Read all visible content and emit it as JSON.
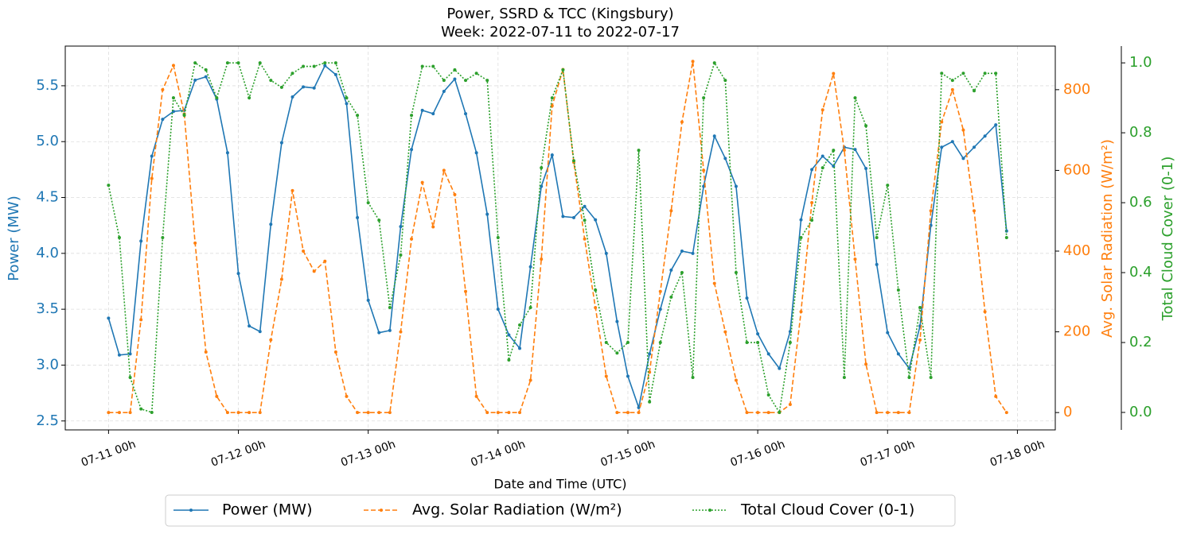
{
  "chart_data": {
    "type": "line",
    "title": "Power, SSRD & TCC (Kingsbury)",
    "subtitle": "Week: 2022-07-11 to 2022-07-17",
    "xlabel": "Date and Time (UTC)",
    "ylabel": "Power (MW)",
    "y2label": "Avg. Solar Radiation (W/m²)",
    "y3label": "Total Cloud Cover (0-1)",
    "grid": true,
    "legend": "below",
    "x": [
      "07-11 00h",
      "07-11 02h",
      "07-11 04h",
      "07-11 06h",
      "07-11 08h",
      "07-11 10h",
      "07-11 12h",
      "07-11 14h",
      "07-11 16h",
      "07-11 18h",
      "07-11 20h",
      "07-11 22h",
      "07-12 00h",
      "07-12 02h",
      "07-12 04h",
      "07-12 06h",
      "07-12 08h",
      "07-12 10h",
      "07-12 12h",
      "07-12 14h",
      "07-12 16h",
      "07-12 18h",
      "07-12 20h",
      "07-12 22h",
      "07-13 00h",
      "07-13 02h",
      "07-13 04h",
      "07-13 06h",
      "07-13 08h",
      "07-13 10h",
      "07-13 12h",
      "07-13 14h",
      "07-13 16h",
      "07-13 18h",
      "07-13 20h",
      "07-13 22h",
      "07-14 00h",
      "07-14 02h",
      "07-14 04h",
      "07-14 06h",
      "07-14 08h",
      "07-14 10h",
      "07-14 12h",
      "07-14 14h",
      "07-14 16h",
      "07-14 18h",
      "07-14 20h",
      "07-14 22h",
      "07-15 00h",
      "07-15 02h",
      "07-15 04h",
      "07-15 06h",
      "07-15 08h",
      "07-15 10h",
      "07-15 12h",
      "07-15 14h",
      "07-15 16h",
      "07-15 18h",
      "07-15 20h",
      "07-15 22h",
      "07-16 00h",
      "07-16 02h",
      "07-16 04h",
      "07-16 06h",
      "07-16 08h",
      "07-16 10h",
      "07-16 12h",
      "07-16 14h",
      "07-16 16h",
      "07-16 18h",
      "07-16 20h",
      "07-16 22h",
      "07-17 00h",
      "07-17 02h",
      "07-17 04h",
      "07-17 06h",
      "07-17 08h",
      "07-17 10h",
      "07-17 12h",
      "07-17 14h",
      "07-17 16h",
      "07-17 18h",
      "07-17 20h",
      "07-17 22h"
    ],
    "xlim": [
      "07-10 16h",
      "07-18 07h"
    ],
    "xticks": [
      "07-11 00h",
      "07-12 00h",
      "07-13 00h",
      "07-14 00h",
      "07-15 00h",
      "07-16 00h",
      "07-17 00h",
      "07-18 00h"
    ],
    "ylim": [
      2.42,
      5.855
    ],
    "yticks": [
      2.5,
      {
        "value": 3,
        "label": "3.0"
      },
      3.5,
      {
        "value": 4,
        "label": "4.0"
      },
      4.5,
      {
        "value": 5,
        "label": "5.0"
      },
      5.5
    ],
    "y2lim": [
      -43,
      908
    ],
    "y2ticks": [
      0,
      200,
      400,
      600,
      800
    ],
    "y3lim": [
      -0.05,
      1.048
    ],
    "y3ticks": [
      {
        "value": 0,
        "label": "0.0"
      },
      0.2,
      0.4,
      0.6,
      0.8,
      {
        "value": 1,
        "label": "1.0"
      }
    ],
    "series": [
      {
        "name": "Power (MW)",
        "color": "#1f77b4",
        "axis": "y",
        "linestyle": "solid",
        "values": [
          3.42,
          3.09,
          3.1,
          4.11,
          4.87,
          5.2,
          5.27,
          5.28,
          5.55,
          5.58,
          5.38,
          4.9,
          3.82,
          3.35,
          3.3,
          4.26,
          4.99,
          5.4,
          5.49,
          5.48,
          5.68,
          5.6,
          5.34,
          4.32,
          3.58,
          3.29,
          3.31,
          4.24,
          4.93,
          5.28,
          5.25,
          5.45,
          5.56,
          5.25,
          4.9,
          4.35,
          3.5,
          3.27,
          3.15,
          3.88,
          4.6,
          4.88,
          4.33,
          4.32,
          4.42,
          4.3,
          4.0,
          3.39,
          2.9,
          2.62,
          3.1,
          3.5,
          3.85,
          4.02,
          4.0,
          4.6,
          5.05,
          4.85,
          4.6,
          3.6,
          3.28,
          3.1,
          2.97,
          3.3,
          4.3,
          4.75,
          4.87,
          4.78,
          4.95,
          4.93,
          4.76,
          3.9,
          3.29,
          3.1,
          2.97,
          3.35,
          4.25,
          4.95,
          5.0,
          4.85,
          4.95,
          5.05,
          5.15,
          4.2
        ]
      },
      {
        "name": "Avg. Solar Radiation (W/m²)",
        "color": "#ff7f0e",
        "axis": "y2",
        "linestyle": "dashed",
        "values": [
          0,
          0,
          0,
          230,
          580,
          800,
          860,
          740,
          420,
          150,
          40,
          0,
          0,
          0,
          0,
          180,
          330,
          550,
          400,
          350,
          375,
          150,
          40,
          0,
          0,
          0,
          0,
          200,
          430,
          570,
          460,
          600,
          540,
          300,
          40,
          0,
          0,
          0,
          0,
          80,
          380,
          760,
          850,
          620,
          430,
          260,
          90,
          0,
          0,
          0,
          100,
          300,
          500,
          720,
          870,
          600,
          320,
          200,
          80,
          0,
          0,
          0,
          0,
          20,
          250,
          520,
          750,
          840,
          650,
          380,
          120,
          0,
          0,
          0,
          0,
          180,
          500,
          720,
          800,
          700,
          500,
          250,
          40,
          0
        ]
      },
      {
        "name": "Total Cloud Cover (0-1)",
        "color": "#2ca02c",
        "axis": "y3",
        "linestyle": "dotted",
        "values": [
          0.65,
          0.5,
          0.1,
          0.01,
          0.0,
          0.5,
          0.9,
          0.85,
          1.0,
          0.98,
          0.9,
          1.0,
          1.0,
          0.9,
          1.0,
          0.95,
          0.93,
          0.97,
          0.99,
          0.99,
          1.0,
          1.0,
          0.9,
          0.85,
          0.6,
          0.55,
          0.3,
          0.45,
          0.85,
          0.99,
          0.99,
          0.95,
          0.98,
          0.95,
          0.97,
          0.95,
          0.5,
          0.15,
          0.25,
          0.3,
          0.7,
          0.9,
          0.98,
          0.72,
          0.55,
          0.35,
          0.2,
          0.17,
          0.2,
          0.75,
          0.03,
          0.2,
          0.33,
          0.4,
          0.1,
          0.9,
          1.0,
          0.95,
          0.4,
          0.2,
          0.2,
          0.05,
          0.0,
          0.2,
          0.5,
          0.55,
          0.7,
          0.75,
          0.1,
          0.9,
          0.82,
          0.5,
          0.65,
          0.35,
          0.1,
          0.3,
          0.1,
          0.97,
          0.95,
          0.97,
          0.92,
          0.97,
          0.97,
          0.5
        ]
      }
    ]
  }
}
